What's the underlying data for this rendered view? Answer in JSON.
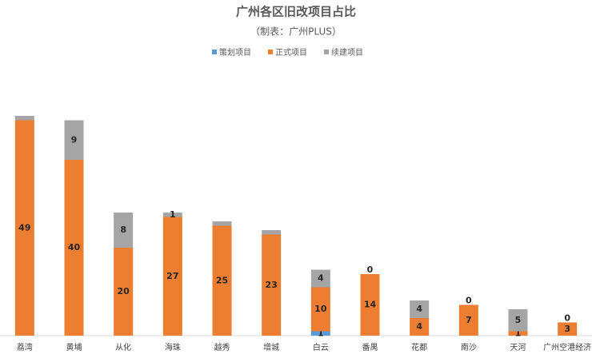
{
  "chart_data": {
    "type": "stacked_bar",
    "title": "广州各区旧改项目占比",
    "subtitle": "（制表：广州PLUS）",
    "categories": [
      "荔湾",
      "黄埔",
      "从化",
      "海珠",
      "越秀",
      "增城",
      "白云",
      "番禺",
      "花都",
      "南沙",
      "天河",
      "广州空港经济"
    ],
    "series": [
      {
        "name": "策划项目",
        "color": "#5b9bd5",
        "values": [
          0,
          0,
          0,
          0,
          0,
          0,
          1,
          0,
          0,
          0,
          0,
          0
        ],
        "value_labels": [
          null,
          null,
          null,
          null,
          null,
          null,
          "1",
          null,
          null,
          null,
          null,
          null
        ]
      },
      {
        "name": "正式项目",
        "color": "#ed7d31",
        "values": [
          49,
          40,
          20,
          27,
          25,
          23,
          10,
          14,
          4,
          7,
          1,
          3
        ],
        "value_labels": [
          "49",
          "40",
          "20",
          "27",
          "25",
          "23",
          "10",
          "14",
          "4",
          "7",
          "1",
          "3"
        ]
      },
      {
        "name": "续建项目",
        "color": "#a5a5a5",
        "values": [
          1,
          9,
          8,
          1,
          1,
          1,
          4,
          0,
          4,
          0,
          5,
          0
        ],
        "value_labels": [
          null,
          "9",
          "8",
          "1",
          null,
          null,
          "4",
          "0",
          "4",
          "0",
          "5",
          "0"
        ]
      }
    ],
    "ylim": [
      0,
      50
    ],
    "legend": "top"
  }
}
